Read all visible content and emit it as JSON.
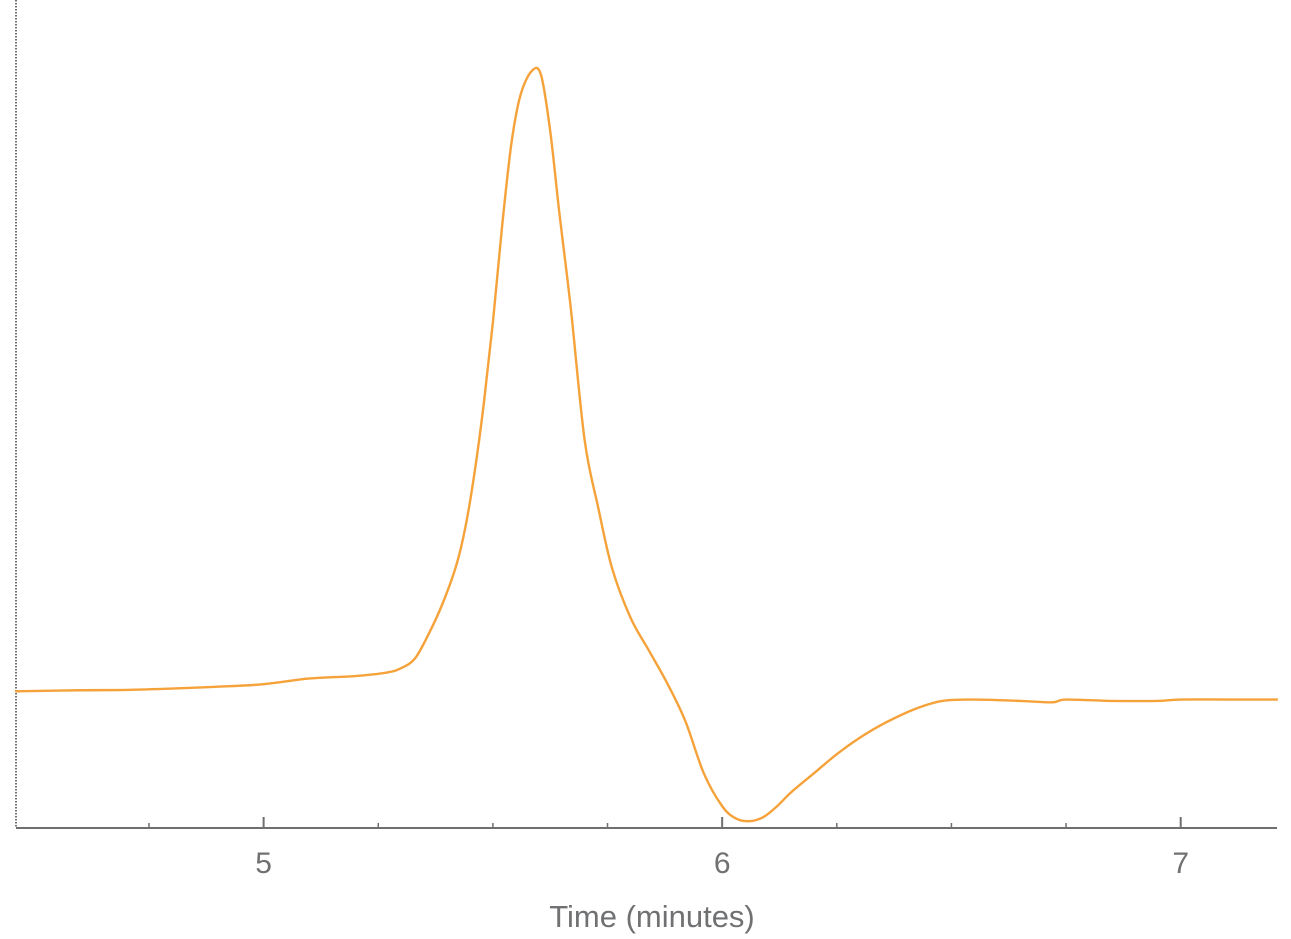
{
  "chart_data": {
    "type": "line",
    "title": "",
    "xlabel": "Time (minutes)",
    "ylabel": "",
    "xlim": [
      4.46,
      7.21
    ],
    "ylim": [
      -0.5,
      2.35
    ],
    "x_major_ticks": [
      5,
      6,
      7
    ],
    "x_tick_labels": [
      "5",
      "6",
      "7"
    ],
    "x_minor_ticks": [
      4.75,
      5.25,
      5.5,
      5.75,
      6.25,
      6.5,
      6.75
    ],
    "y_axis_labeled": false,
    "grid": false,
    "legend": "none",
    "colors": {
      "line": "#F5A23A",
      "axis": "#6E6F71",
      "text": "#707173"
    },
    "series": [
      {
        "x": [
          4.46,
          4.6,
          4.7,
          4.8,
          4.9,
          5.0,
          5.1,
          5.2,
          5.27,
          5.3,
          5.33,
          5.36,
          5.39,
          5.42,
          5.44,
          5.46,
          5.48,
          5.5,
          5.52,
          5.54,
          5.56,
          5.585,
          5.605,
          5.625,
          5.645,
          5.67,
          5.7,
          5.73,
          5.76,
          5.8,
          5.84,
          5.88,
          5.92,
          5.96,
          6.0,
          6.03,
          6.06,
          6.09,
          6.12,
          6.15,
          6.2,
          6.25,
          6.3,
          6.35,
          6.42,
          6.48,
          6.55,
          6.65,
          6.72,
          6.75,
          6.85,
          6.95,
          7.0,
          7.1,
          7.21
        ],
        "y": [
          0.0,
          0.004,
          0.005,
          0.01,
          0.017,
          0.026,
          0.047,
          0.056,
          0.069,
          0.085,
          0.12,
          0.21,
          0.32,
          0.46,
          0.6,
          0.8,
          1.05,
          1.35,
          1.7,
          2.0,
          2.18,
          2.27,
          2.255,
          2.05,
          1.75,
          1.4,
          0.92,
          0.67,
          0.45,
          0.27,
          0.15,
          0.03,
          -0.11,
          -0.3,
          -0.42,
          -0.465,
          -0.475,
          -0.46,
          -0.42,
          -0.37,
          -0.3,
          -0.23,
          -0.17,
          -0.12,
          -0.065,
          -0.035,
          -0.03,
          -0.035,
          -0.04,
          -0.03,
          -0.035,
          -0.035,
          -0.03,
          -0.03,
          -0.03
        ]
      }
    ]
  }
}
